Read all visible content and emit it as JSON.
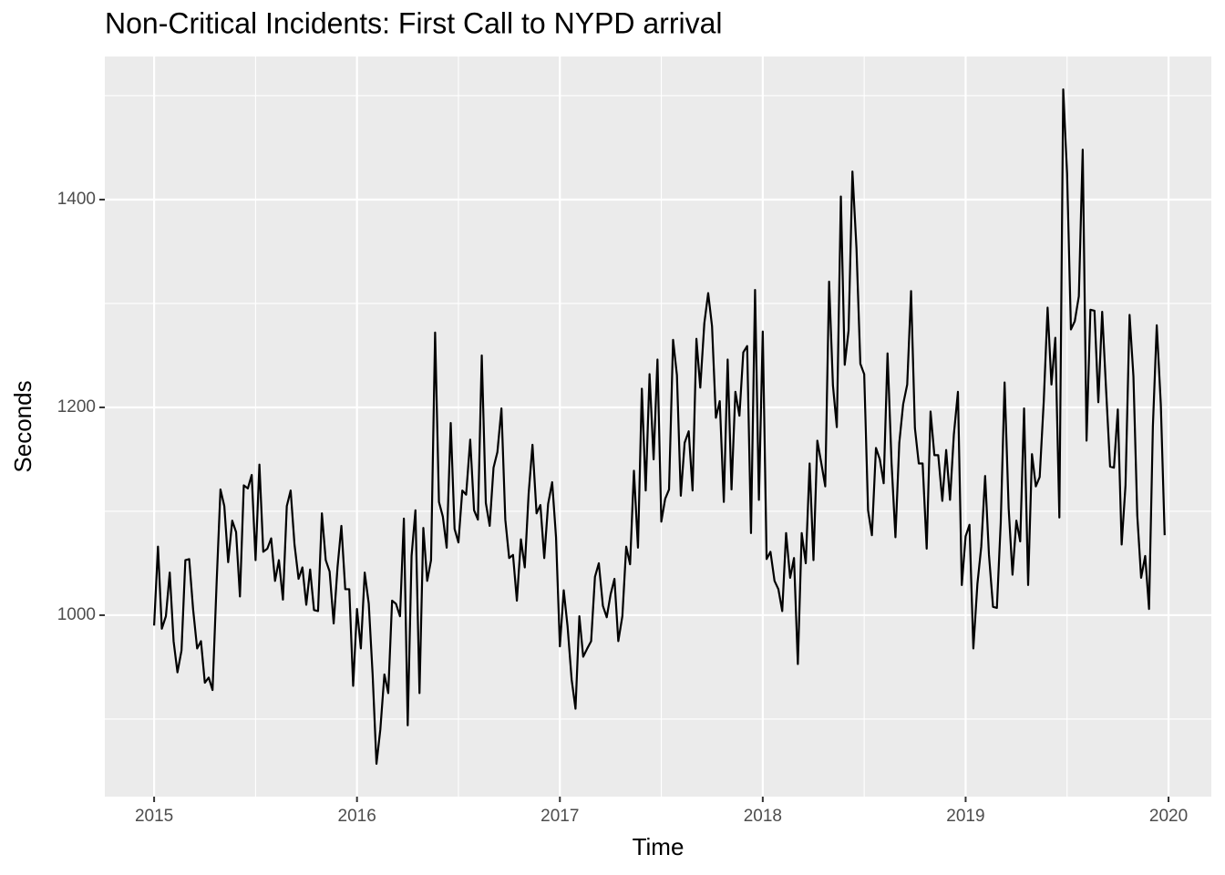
{
  "chart_data": {
    "type": "line",
    "title": "Non-Critical Incidents: First Call to NYPD arrival",
    "x_label": "Time",
    "y_label": "Seconds",
    "color": "#000000",
    "grid": true,
    "xlim": [
      2014.757,
      2020.211
    ],
    "xticks": [
      2015,
      2016,
      2017,
      2018,
      2019,
      2020
    ],
    "xminorticks": [
      2015.5,
      2016.5,
      2017.5,
      2018.5,
      2019.5
    ],
    "ylim": [
      825.4,
      1537.7
    ],
    "yticks": [
      1000,
      1200,
      1400
    ],
    "yminorticks": [
      900,
      1100,
      1300,
      1500
    ],
    "x": [
      2015.0,
      2015.019,
      2015.038,
      2015.058,
      2015.077,
      2015.096,
      2015.115,
      2015.135,
      2015.154,
      2015.173,
      2015.192,
      2015.212,
      2015.231,
      2015.25,
      2015.269,
      2015.288,
      2015.308,
      2015.327,
      2015.346,
      2015.365,
      2015.385,
      2015.404,
      2015.423,
      2015.442,
      2015.462,
      2015.481,
      2015.5,
      2015.519,
      2015.538,
      2015.558,
      2015.577,
      2015.596,
      2015.615,
      2015.635,
      2015.654,
      2015.673,
      2015.692,
      2015.712,
      2015.731,
      2015.75,
      2015.769,
      2015.788,
      2015.808,
      2015.827,
      2015.846,
      2015.865,
      2015.885,
      2015.904,
      2015.923,
      2015.942,
      2015.962,
      2015.981,
      2016.0,
      2016.019,
      2016.038,
      2016.058,
      2016.077,
      2016.096,
      2016.115,
      2016.135,
      2016.154,
      2016.173,
      2016.192,
      2016.212,
      2016.231,
      2016.25,
      2016.269,
      2016.288,
      2016.308,
      2016.327,
      2016.346,
      2016.365,
      2016.385,
      2016.404,
      2016.423,
      2016.442,
      2016.462,
      2016.481,
      2016.5,
      2016.519,
      2016.538,
      2016.558,
      2016.577,
      2016.596,
      2016.615,
      2016.635,
      2016.654,
      2016.673,
      2016.692,
      2016.712,
      2016.731,
      2016.75,
      2016.769,
      2016.788,
      2016.808,
      2016.827,
      2016.846,
      2016.865,
      2016.885,
      2016.904,
      2016.923,
      2016.942,
      2016.962,
      2016.981,
      2017.0,
      2017.019,
      2017.038,
      2017.058,
      2017.077,
      2017.096,
      2017.115,
      2017.135,
      2017.154,
      2017.173,
      2017.192,
      2017.212,
      2017.231,
      2017.25,
      2017.269,
      2017.288,
      2017.308,
      2017.327,
      2017.346,
      2017.365,
      2017.385,
      2017.404,
      2017.423,
      2017.442,
      2017.462,
      2017.481,
      2017.5,
      2017.519,
      2017.538,
      2017.558,
      2017.577,
      2017.596,
      2017.615,
      2017.635,
      2017.654,
      2017.673,
      2017.692,
      2017.712,
      2017.731,
      2017.75,
      2017.769,
      2017.788,
      2017.808,
      2017.827,
      2017.846,
      2017.865,
      2017.885,
      2017.904,
      2017.923,
      2017.942,
      2017.962,
      2017.981,
      2018.0,
      2018.019,
      2018.038,
      2018.058,
      2018.077,
      2018.096,
      2018.115,
      2018.135,
      2018.154,
      2018.173,
      2018.192,
      2018.212,
      2018.231,
      2018.25,
      2018.269,
      2018.288,
      2018.308,
      2018.327,
      2018.346,
      2018.365,
      2018.385,
      2018.404,
      2018.423,
      2018.442,
      2018.462,
      2018.481,
      2018.5,
      2018.519,
      2018.538,
      2018.558,
      2018.577,
      2018.596,
      2018.615,
      2018.635,
      2018.654,
      2018.673,
      2018.692,
      2018.712,
      2018.731,
      2018.75,
      2018.769,
      2018.788,
      2018.808,
      2018.827,
      2018.846,
      2018.865,
      2018.885,
      2018.904,
      2018.923,
      2018.942,
      2018.962,
      2018.981,
      2019.0,
      2019.019,
      2019.038,
      2019.058,
      2019.077,
      2019.096,
      2019.115,
      2019.135,
      2019.154,
      2019.173,
      2019.192,
      2019.212,
      2019.231,
      2019.25,
      2019.269,
      2019.288,
      2019.308,
      2019.327,
      2019.346,
      2019.365,
      2019.385,
      2019.404,
      2019.423,
      2019.442,
      2019.462,
      2019.481,
      2019.5,
      2019.519,
      2019.538,
      2019.558,
      2019.577,
      2019.596,
      2019.615,
      2019.635,
      2019.654,
      2019.673,
      2019.692,
      2019.712,
      2019.731,
      2019.75,
      2019.769,
      2019.788,
      2019.808,
      2019.827,
      2019.846,
      2019.865,
      2019.885,
      2019.904,
      2019.923,
      2019.942,
      2019.962,
      2019.981
    ],
    "values": [
      990,
      1066,
      987,
      999,
      1041,
      975,
      945,
      966,
      1053,
      1054,
      1006,
      968,
      975,
      935,
      940,
      928,
      1031,
      1121,
      1105,
      1051,
      1091,
      1080,
      1018,
      1125,
      1122,
      1135,
      1053,
      1145,
      1061,
      1064,
      1074,
      1033,
      1053,
      1015,
      1105,
      1120,
      1068,
      1035,
      1046,
      1010,
      1044,
      1005,
      1004,
      1098,
      1053,
      1042,
      992,
      1046,
      1086,
      1025,
      1025,
      932,
      1006,
      968,
      1041,
      1011,
      943,
      857,
      890,
      943,
      925,
      1014,
      1011,
      999,
      1093,
      894,
      1057,
      1101,
      925,
      1084,
      1033,
      1053,
      1272,
      1109,
      1095,
      1065,
      1185,
      1083,
      1070,
      1120,
      1116,
      1169,
      1101,
      1092,
      1250,
      1108,
      1086,
      1142,
      1157,
      1199,
      1092,
      1055,
      1058,
      1014,
      1073,
      1046,
      1117,
      1164,
      1098,
      1106,
      1055,
      1107,
      1128,
      1075,
      970,
      1024,
      989,
      938,
      910,
      999,
      960,
      968,
      975,
      1037,
      1050,
      1009,
      998,
      1020,
      1035,
      975,
      999,
      1066,
      1049,
      1139,
      1065,
      1218,
      1120,
      1232,
      1150,
      1246,
      1090,
      1112,
      1121,
      1265,
      1231,
      1115,
      1166,
      1177,
      1120,
      1266,
      1219,
      1281,
      1310,
      1278,
      1190,
      1206,
      1109,
      1246,
      1121,
      1215,
      1192,
      1253,
      1259,
      1079,
      1313,
      1111,
      1273,
      1054,
      1061,
      1033,
      1025,
      1004,
      1079,
      1036,
      1055,
      953,
      1079,
      1050,
      1146,
      1053,
      1168,
      1147,
      1124,
      1321,
      1221,
      1181,
      1403,
      1241,
      1274,
      1427,
      1353,
      1242,
      1232,
      1101,
      1077,
      1161,
      1150,
      1127,
      1252,
      1146,
      1075,
      1166,
      1203,
      1222,
      1312,
      1180,
      1146,
      1146,
      1064,
      1196,
      1154,
      1154,
      1110,
      1159,
      1111,
      1174,
      1215,
      1029,
      1076,
      1087,
      968,
      1030,
      1066,
      1134,
      1058,
      1008,
      1007,
      1089,
      1224,
      1103,
      1039,
      1091,
      1071,
      1199,
      1029,
      1155,
      1124,
      1133,
      1206,
      1296,
      1222,
      1267,
      1094,
      1506,
      1425,
      1275,
      1283,
      1307,
      1448,
      1168,
      1294,
      1293,
      1205,
      1292,
      1218,
      1143,
      1142,
      1198,
      1068,
      1125,
      1289,
      1230,
      1096,
      1036,
      1057,
      1006,
      1182,
      1279,
      1203,
      1077
    ]
  }
}
